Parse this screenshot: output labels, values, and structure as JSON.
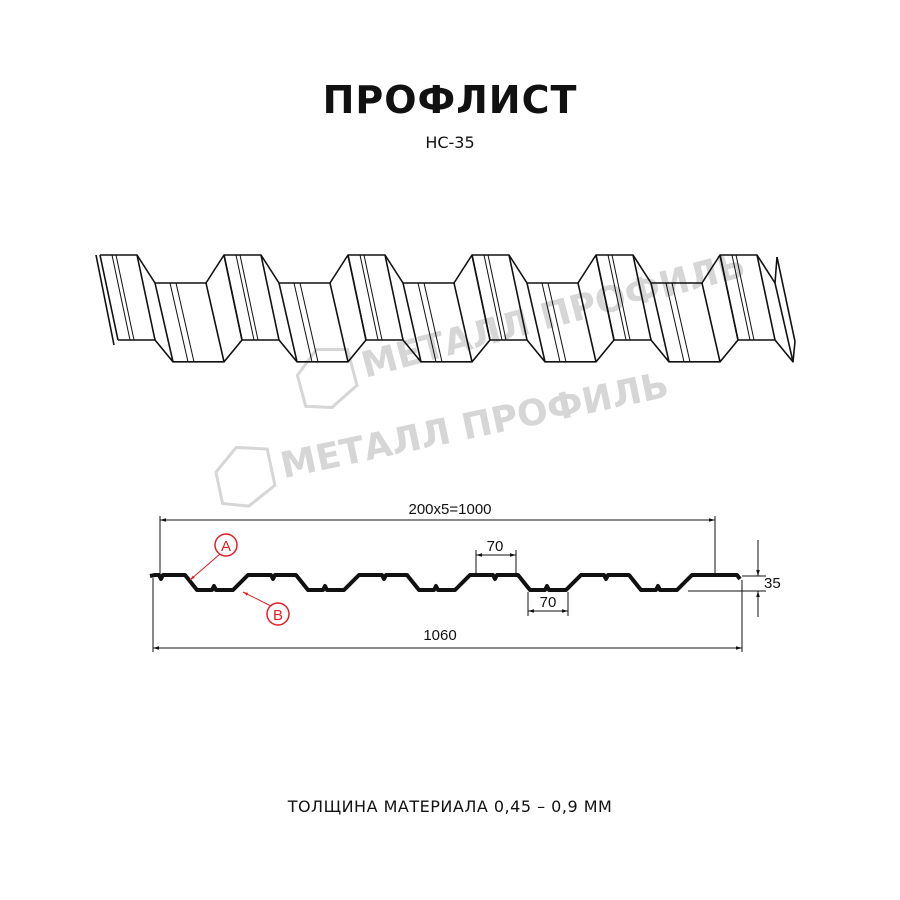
{
  "title": "ПРОФЛИСТ",
  "subtitle": "НС-35",
  "footer": "ТОЛЩИНА МАТЕРИАЛА 0,45 – 0,9 ММ",
  "watermark": "МЕТАЛЛ ПРОФИЛЬ",
  "dimensions": {
    "pitch_total": "200x5=1000",
    "total_width": "1060",
    "crest_width": "70",
    "trough_width": "70",
    "height": "35"
  },
  "callouts": {
    "a": "A",
    "b": "B"
  },
  "colors": {
    "line": "#111111",
    "callout": "#e31e24",
    "watermark": "#d6d6d6"
  }
}
